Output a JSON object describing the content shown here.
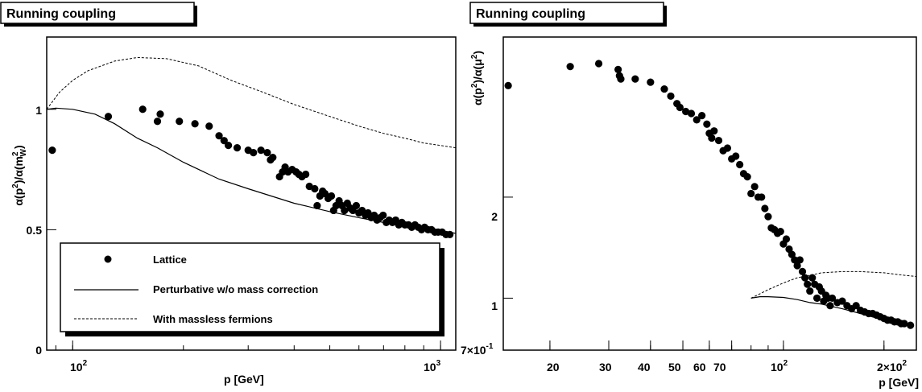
{
  "chart_data": [
    {
      "type": "scatter",
      "title": "Running coupling",
      "xlabel": "p [GeV]",
      "ylabel_main": "α(p",
      "ylabel_sup1": "2",
      "ylabel_mid": ")/α(m",
      "ylabel_sup2": "2",
      "ylabel_sub2": "W",
      "ylabel_end": ")",
      "xscale": "log",
      "xlim": [
        85,
        1100
      ],
      "ylim": [
        0,
        1.3
      ],
      "x_ticks": [
        {
          "value": 100,
          "base": "10",
          "exp": "2"
        },
        {
          "value": 1000,
          "base": "10",
          "exp": "3"
        }
      ],
      "y_ticks": [
        {
          "value": 0,
          "label": "0"
        },
        {
          "value": 0.5,
          "label": "0.5"
        },
        {
          "value": 1,
          "label": "1"
        }
      ],
      "legend": {
        "placement": "bottom-left",
        "entries": [
          "Lattice",
          "Perturbative w/o mass correction",
          "With massless fermions"
        ]
      },
      "series": [
        {
          "name": "Lattice",
          "style": "points",
          "points": [
            [
              88,
              0.83
            ],
            [
              125,
              0.97
            ],
            [
              155,
              1.0
            ],
            [
              170,
              0.95
            ],
            [
              173,
              0.98
            ],
            [
              195,
              0.95
            ],
            [
              215,
              0.94
            ],
            [
              235,
              0.93
            ],
            [
              250,
              0.89
            ],
            [
              258,
              0.87
            ],
            [
              265,
              0.85
            ],
            [
              280,
              0.84
            ],
            [
              300,
              0.83
            ],
            [
              310,
              0.82
            ],
            [
              325,
              0.83
            ],
            [
              338,
              0.82
            ],
            [
              345,
              0.79
            ],
            [
              350,
              0.8
            ],
            [
              365,
              0.72
            ],
            [
              372,
              0.74
            ],
            [
              378,
              0.76
            ],
            [
              385,
              0.74
            ],
            [
              395,
              0.75
            ],
            [
              405,
              0.74
            ],
            [
              412,
              0.73
            ],
            [
              420,
              0.72
            ],
            [
              430,
              0.73
            ],
            [
              440,
              0.68
            ],
            [
              455,
              0.67
            ],
            [
              462,
              0.6
            ],
            [
              470,
              0.64
            ],
            [
              478,
              0.66
            ],
            [
              485,
              0.65
            ],
            [
              495,
              0.63
            ],
            [
              505,
              0.64
            ],
            [
              512,
              0.58
            ],
            [
              520,
              0.6
            ],
            [
              530,
              0.62
            ],
            [
              540,
              0.6
            ],
            [
              548,
              0.58
            ],
            [
              558,
              0.61
            ],
            [
              568,
              0.59
            ],
            [
              578,
              0.58
            ],
            [
              590,
              0.6
            ],
            [
              600,
              0.57
            ],
            [
              612,
              0.58
            ],
            [
              625,
              0.56
            ],
            [
              635,
              0.57
            ],
            [
              648,
              0.55
            ],
            [
              660,
              0.56
            ],
            [
              672,
              0.54
            ],
            [
              685,
              0.55
            ],
            [
              698,
              0.56
            ],
            [
              712,
              0.53
            ],
            [
              725,
              0.54
            ],
            [
              740,
              0.53
            ],
            [
              755,
              0.54
            ],
            [
              770,
              0.52
            ],
            [
              785,
              0.53
            ],
            [
              800,
              0.52
            ],
            [
              818,
              0.52
            ],
            [
              835,
              0.51
            ],
            [
              852,
              0.52
            ],
            [
              870,
              0.51
            ],
            [
              888,
              0.5
            ],
            [
              905,
              0.51
            ],
            [
              925,
              0.5
            ],
            [
              945,
              0.5
            ],
            [
              965,
              0.49
            ],
            [
              985,
              0.49
            ],
            [
              1010,
              0.49
            ],
            [
              1035,
              0.48
            ],
            [
              1060,
              0.48
            ]
          ]
        },
        {
          "name": "Perturbative w/o mass correction",
          "style": "solid",
          "points": [
            [
              85,
              1.0
            ],
            [
              90,
              1.005
            ],
            [
              100,
              1.0
            ],
            [
              115,
              0.98
            ],
            [
              130,
              0.94
            ],
            [
              150,
              0.88
            ],
            [
              170,
              0.84
            ],
            [
              200,
              0.78
            ],
            [
              250,
              0.71
            ],
            [
              300,
              0.67
            ],
            [
              400,
              0.61
            ],
            [
              500,
              0.575
            ],
            [
              600,
              0.55
            ],
            [
              700,
              0.53
            ],
            [
              800,
              0.515
            ],
            [
              900,
              0.505
            ],
            [
              1000,
              0.495
            ],
            [
              1100,
              0.485
            ]
          ]
        },
        {
          "name": "With massless fermions",
          "style": "dashed",
          "points": [
            [
              85,
              1.0
            ],
            [
              92,
              1.07
            ],
            [
              100,
              1.12
            ],
            [
              110,
              1.16
            ],
            [
              130,
              1.2
            ],
            [
              150,
              1.215
            ],
            [
              180,
              1.21
            ],
            [
              220,
              1.18
            ],
            [
              270,
              1.12
            ],
            [
              330,
              1.07
            ],
            [
              400,
              1.02
            ],
            [
              500,
              0.97
            ],
            [
              600,
              0.93
            ],
            [
              700,
              0.9
            ],
            [
              800,
              0.88
            ],
            [
              900,
              0.86
            ],
            [
              1000,
              0.85
            ],
            [
              1100,
              0.84
            ]
          ]
        }
      ]
    },
    {
      "type": "scatter",
      "title": "Running coupling",
      "xlabel": "p [GeV]",
      "ylabel_main": "α(p",
      "ylabel_sup1": "2",
      "ylabel_mid": ")/α(μ",
      "ylabel_sup2": "2",
      "ylabel_end": ")",
      "xscale": "log",
      "yscale": "log",
      "xlim": [
        14.5,
        250
      ],
      "ylim": [
        0.7,
        6.0
      ],
      "x_ticks": [
        {
          "value": 20,
          "label": "20"
        },
        {
          "value": 30,
          "label": "30"
        },
        {
          "value": 40,
          "label": "40"
        },
        {
          "value": 50,
          "label": "50"
        },
        {
          "value": 60,
          "label": "60"
        },
        {
          "value": 70,
          "label": "70"
        },
        {
          "value": 100,
          "base": "10",
          "exp": "2"
        },
        {
          "value": 200,
          "base": "2×10",
          "exp": "2"
        }
      ],
      "y_ticks": [
        {
          "value": 0.7,
          "base": "7×10",
          "exp": "-1"
        },
        {
          "value": 1,
          "label": "1"
        },
        {
          "value": 2,
          "label": "2"
        }
      ],
      "series": [
        {
          "name": "Lattice",
          "style": "points",
          "points": [
            [
              15,
              4.3
            ],
            [
              23,
              4.9
            ],
            [
              28,
              5.0
            ],
            [
              32,
              4.8
            ],
            [
              32.3,
              4.6
            ],
            [
              32.6,
              4.5
            ],
            [
              36,
              4.5
            ],
            [
              40,
              4.4
            ],
            [
              44,
              4.2
            ],
            [
              46,
              4.0
            ],
            [
              48,
              3.8
            ],
            [
              49,
              3.7
            ],
            [
              51,
              3.6
            ],
            [
              53,
              3.55
            ],
            [
              55,
              3.4
            ],
            [
              57,
              3.5
            ],
            [
              59,
              3.3
            ],
            [
              60,
              3.1
            ],
            [
              61,
              3.0
            ],
            [
              62,
              3.15
            ],
            [
              64,
              2.95
            ],
            [
              66,
              2.75
            ],
            [
              68,
              2.8
            ],
            [
              70,
              2.6
            ],
            [
              72,
              2.65
            ],
            [
              74,
              2.5
            ],
            [
              76,
              2.35
            ],
            [
              78,
              2.3
            ],
            [
              80,
              2.05
            ],
            [
              82,
              2.15
            ],
            [
              84,
              2.0
            ],
            [
              86,
              2.0
            ],
            [
              88,
              1.85
            ],
            [
              90,
              1.75
            ],
            [
              92,
              1.62
            ],
            [
              94,
              1.6
            ],
            [
              96,
              1.56
            ],
            [
              98,
              1.58
            ],
            [
              100,
              1.45
            ],
            [
              102,
              1.5
            ],
            [
              104,
              1.4
            ],
            [
              106,
              1.35
            ],
            [
              108,
              1.3
            ],
            [
              110,
              1.25
            ],
            [
              112,
              1.3
            ],
            [
              114,
              1.2
            ],
            [
              116,
              1.15
            ],
            [
              118,
              1.1
            ],
            [
              120,
              1.05
            ],
            [
              122,
              1.15
            ],
            [
              124,
              1.1
            ],
            [
              126,
              1.0
            ],
            [
              128,
              1.08
            ],
            [
              130,
              1.05
            ],
            [
              132,
              0.98
            ],
            [
              134,
              1.02
            ],
            [
              136,
              1.0
            ],
            [
              138,
              0.95
            ],
            [
              140,
              1.0
            ],
            [
              145,
              0.97
            ],
            [
              150,
              0.98
            ],
            [
              155,
              0.95
            ],
            [
              160,
              0.93
            ],
            [
              165,
              0.95
            ],
            [
              170,
              0.92
            ],
            [
              175,
              0.91
            ],
            [
              180,
              0.9
            ],
            [
              185,
              0.9
            ],
            [
              190,
              0.89
            ],
            [
              195,
              0.88
            ],
            [
              200,
              0.87
            ],
            [
              205,
              0.86
            ],
            [
              210,
              0.86
            ],
            [
              215,
              0.85
            ],
            [
              220,
              0.85
            ],
            [
              225,
              0.84
            ],
            [
              230,
              0.84
            ],
            [
              240,
              0.83
            ]
          ]
        },
        {
          "name": "Perturbative w/o mass correction",
          "style": "solid",
          "points": [
            [
              80,
              1.0
            ],
            [
              85,
              1.01
            ],
            [
              90,
              1.01
            ],
            [
              100,
              1.005
            ],
            [
              110,
              0.99
            ],
            [
              120,
              0.97
            ],
            [
              130,
              0.96
            ],
            [
              150,
              0.93
            ],
            [
              170,
              0.9
            ],
            [
              200,
              0.86
            ],
            [
              230,
              0.84
            ],
            [
              245,
              0.83
            ]
          ]
        },
        {
          "name": "With massless fermions",
          "style": "dashed",
          "points": [
            [
              80,
              1.0
            ],
            [
              85,
              1.03
            ],
            [
              90,
              1.06
            ],
            [
              100,
              1.11
            ],
            [
              110,
              1.15
            ],
            [
              120,
              1.17
            ],
            [
              130,
              1.19
            ],
            [
              150,
              1.2
            ],
            [
              170,
              1.2
            ],
            [
              200,
              1.19
            ],
            [
              230,
              1.17
            ],
            [
              250,
              1.16
            ]
          ]
        }
      ]
    }
  ]
}
